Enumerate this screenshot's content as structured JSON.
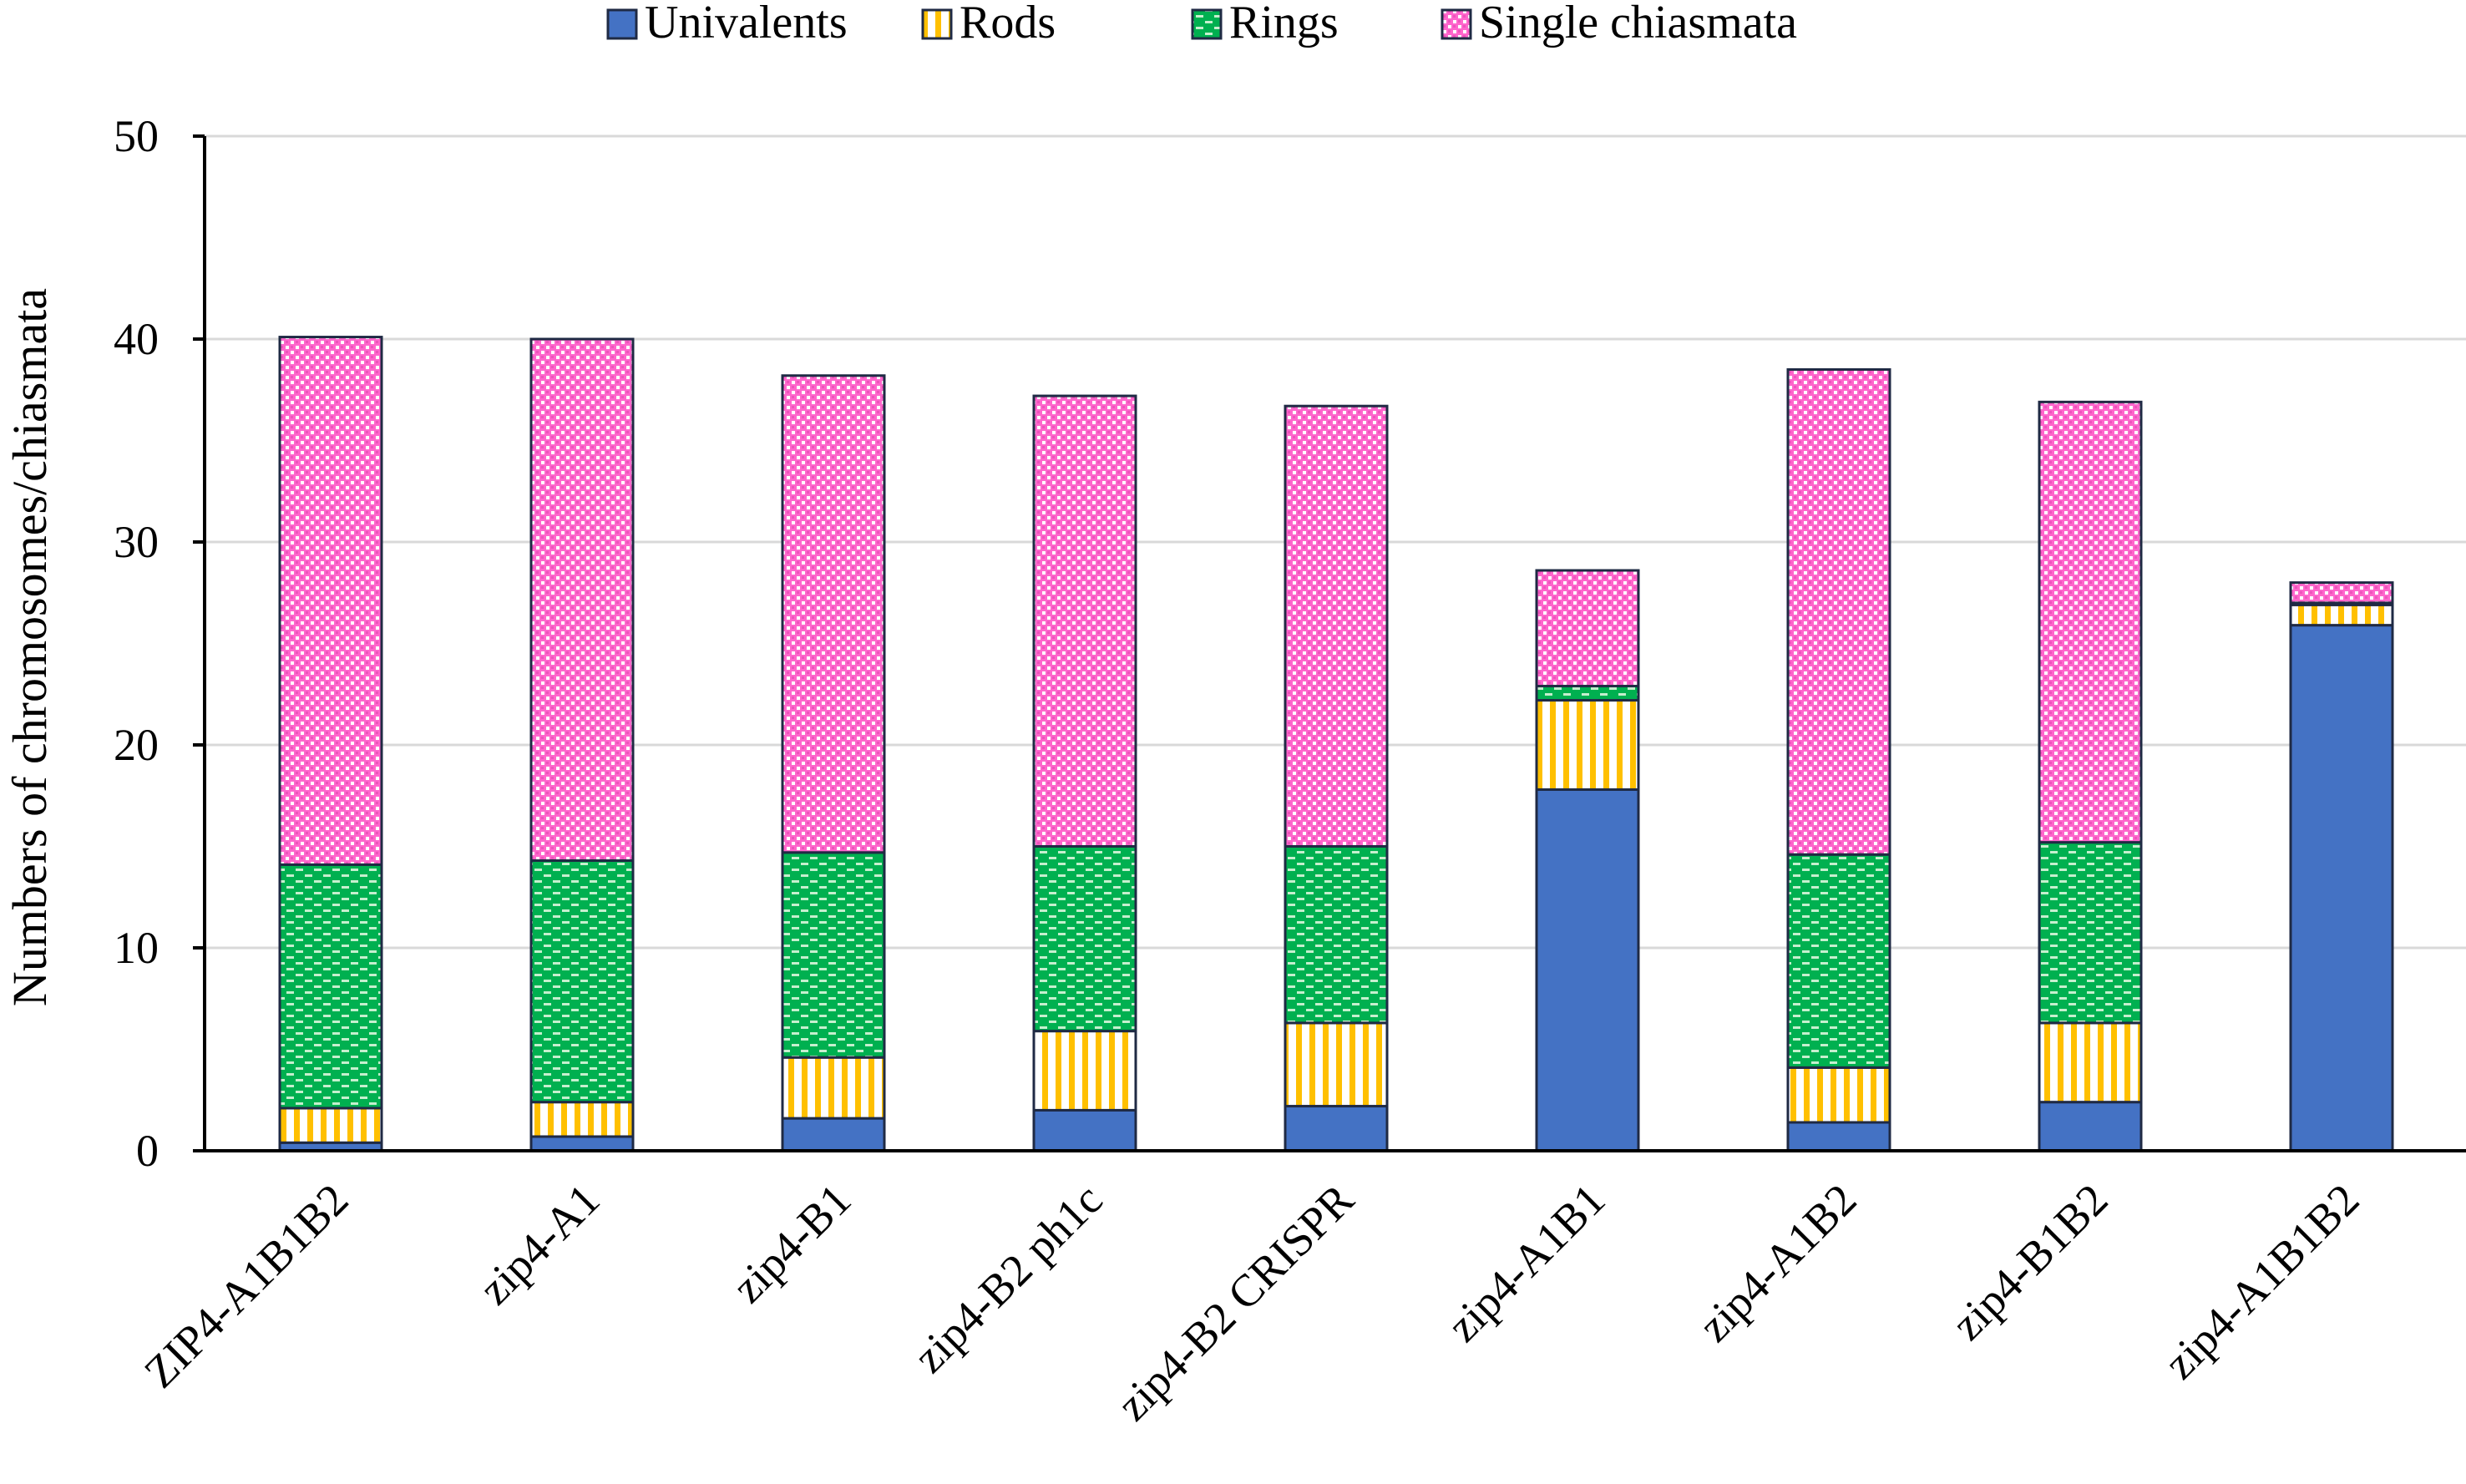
{
  "chart_data": {
    "type": "bar",
    "stacked": true,
    "title": "",
    "xlabel": "",
    "ylabel": "Numbers of chromosomes/chiasmata",
    "ylim": [
      0,
      50
    ],
    "yticks": [
      0,
      10,
      20,
      30,
      40,
      50
    ],
    "grid": true,
    "legend_position": "top",
    "categories": [
      "ZIP4-A1B1B2",
      "zip4-A1",
      "zip4-B1",
      "zip4-B2 ph1c",
      "zip4-B2 CRISPR",
      "zip4-A1B1",
      "zip4-A1B2",
      "zip4-B1B2",
      "zip4-A1B1B2"
    ],
    "series": [
      {
        "name": "Univalents",
        "color": "#4472c4",
        "pattern": "solid",
        "values": [
          0.4,
          0.7,
          1.6,
          2.0,
          2.2,
          17.8,
          1.4,
          2.4,
          25.9
        ]
      },
      {
        "name": "Rods",
        "color": "#ffc000",
        "pattern": "vertical-stripes",
        "values": [
          1.7,
          1.7,
          3.0,
          3.9,
          4.1,
          4.4,
          2.7,
          3.9,
          1.0
        ]
      },
      {
        "name": "Rings",
        "color": "#00b050",
        "pattern": "dashes",
        "values": [
          12.0,
          11.9,
          10.1,
          9.1,
          8.7,
          0.7,
          10.5,
          8.9,
          0.1
        ]
      },
      {
        "name": "Single chiasmata",
        "color": "#ff66cc",
        "pattern": "checker",
        "values": [
          26.0,
          25.7,
          23.5,
          22.2,
          21.7,
          5.7,
          23.9,
          21.7,
          1.0
        ]
      }
    ]
  }
}
